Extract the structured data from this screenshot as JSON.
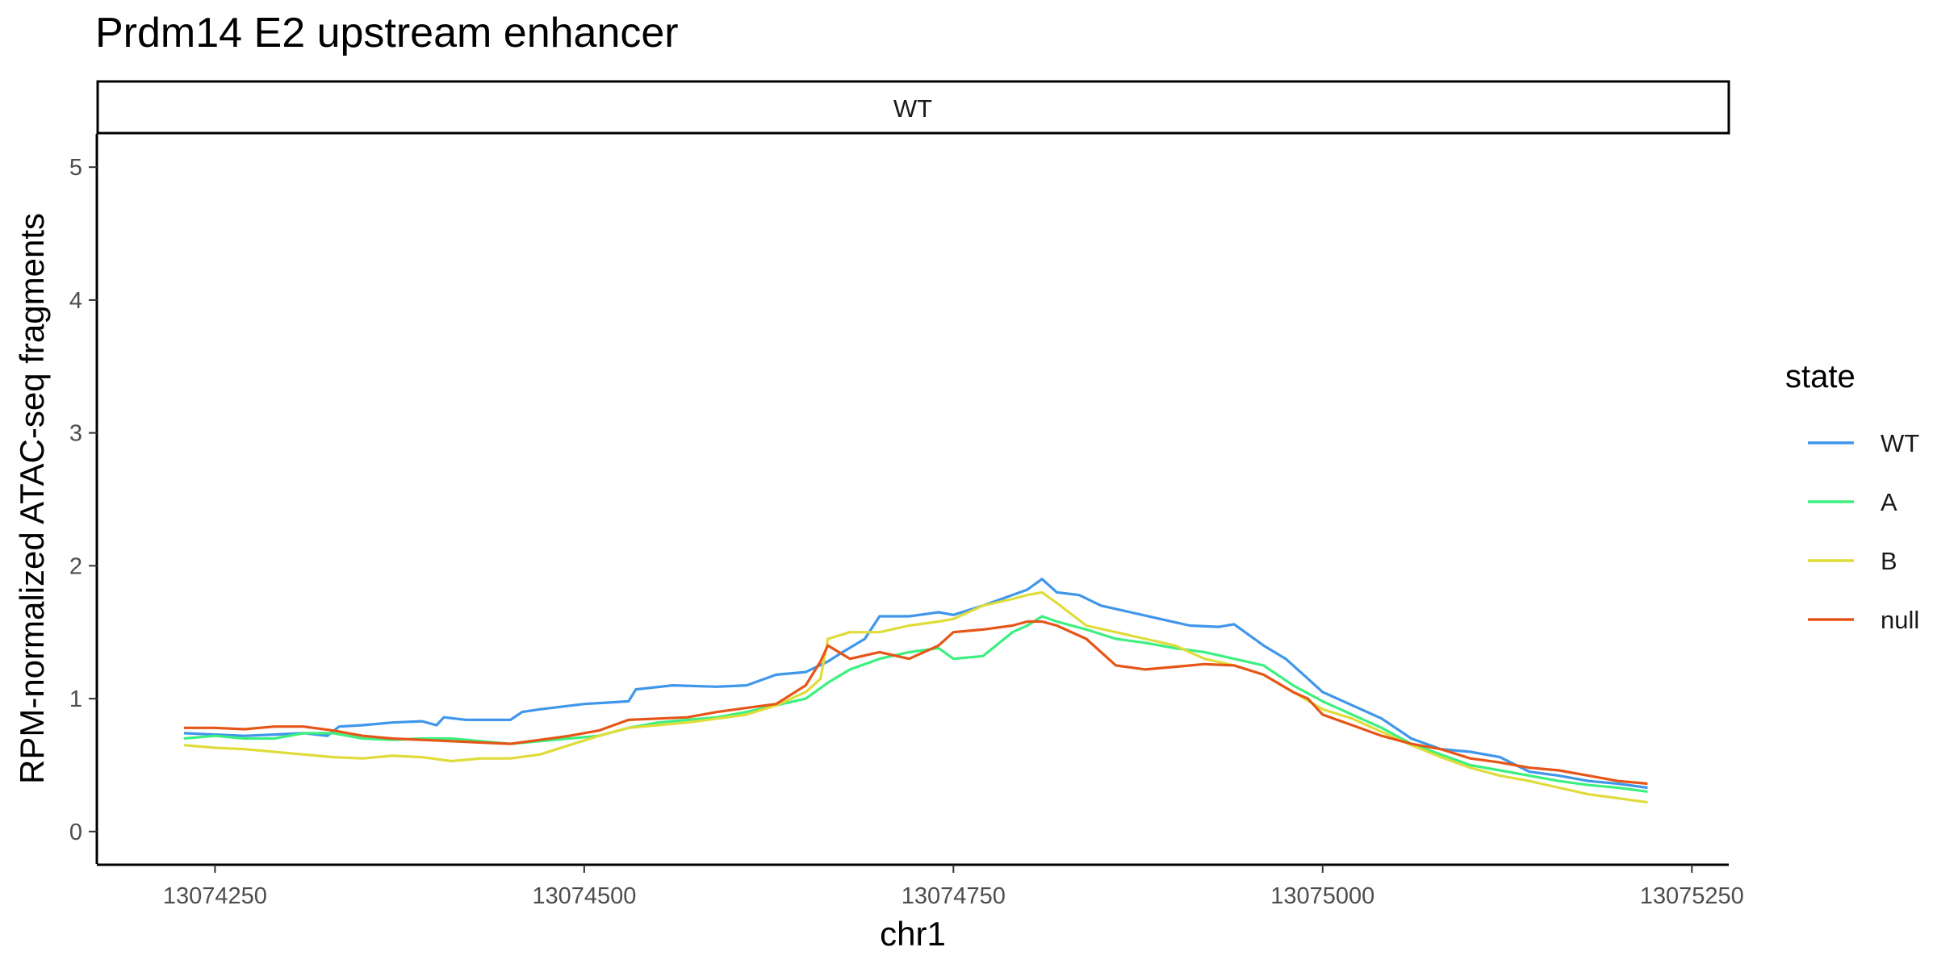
{
  "chart_data": {
    "type": "line",
    "title": "Prdm14 E2 upstream enhancer",
    "facet_label": "WT",
    "xlabel": "chr1",
    "ylabel": "RPM-normalized ATAC-seq fragments",
    "xlim": [
      13074170,
      13075275
    ],
    "ylim": [
      -0.25,
      5.25
    ],
    "x_ticks": [
      13074250,
      13074500,
      13074750,
      13075000,
      13075250
    ],
    "y_ticks": [
      0,
      1,
      2,
      3,
      4,
      5
    ],
    "grid": false,
    "legend": {
      "title": "state",
      "position": "right"
    },
    "series": [
      {
        "name": "WT",
        "color": "#3f96ea",
        "x": [
          13074229,
          13074250,
          13074270,
          13074290,
          13074310,
          13074326,
          13074334,
          13074350,
          13074370,
          13074390,
          13074400,
          13074405,
          13074420,
          13074450,
          13074458,
          13074470,
          13074500,
          13074530,
          13074535,
          13074560,
          13074590,
          13074610,
          13074630,
          13074650,
          13074665,
          13074675,
          13074690,
          13074700,
          13074720,
          13074740,
          13074750,
          13074770,
          13074790,
          13074800,
          13074810,
          13074820,
          13074835,
          13074850,
          13074870,
          13074890,
          13074910,
          13074930,
          13074940,
          13074960,
          13074975,
          13074985,
          13075000,
          13075020,
          13075040,
          13075060,
          13075080,
          13075100,
          13075120,
          13075140,
          13075160,
          13075180,
          13075200,
          13075220
        ],
        "y": [
          0.74,
          0.73,
          0.72,
          0.73,
          0.74,
          0.72,
          0.79,
          0.8,
          0.82,
          0.83,
          0.8,
          0.86,
          0.84,
          0.84,
          0.9,
          0.92,
          0.96,
          0.98,
          1.07,
          1.1,
          1.09,
          1.1,
          1.18,
          1.2,
          1.28,
          1.35,
          1.45,
          1.62,
          1.62,
          1.65,
          1.63,
          1.7,
          1.78,
          1.82,
          1.9,
          1.8,
          1.78,
          1.7,
          1.65,
          1.6,
          1.55,
          1.54,
          1.56,
          1.4,
          1.3,
          1.2,
          1.05,
          0.95,
          0.85,
          0.7,
          0.62,
          0.6,
          0.56,
          0.45,
          0.42,
          0.38,
          0.36,
          0.33
        ]
      },
      {
        "name": "A",
        "color": "#3cf07f",
        "x": [
          13074229,
          13074250,
          13074270,
          13074290,
          13074310,
          13074330,
          13074350,
          13074370,
          13074390,
          13074410,
          13074430,
          13074450,
          13074470,
          13074490,
          13074510,
          13074530,
          13074550,
          13074570,
          13074590,
          13074610,
          13074630,
          13074650,
          13074665,
          13074680,
          13074700,
          13074720,
          13074740,
          13074750,
          13074770,
          13074790,
          13074800,
          13074810,
          13074820,
          13074840,
          13074860,
          13074880,
          13074900,
          13074920,
          13074940,
          13074960,
          13074980,
          13075000,
          13075020,
          13075040,
          13075060,
          13075080,
          13075100,
          13075120,
          13075140,
          13075160,
          13075180,
          13075200,
          13075220
        ],
        "y": [
          0.7,
          0.72,
          0.7,
          0.7,
          0.74,
          0.74,
          0.7,
          0.69,
          0.7,
          0.7,
          0.68,
          0.66,
          0.68,
          0.7,
          0.72,
          0.78,
          0.82,
          0.84,
          0.86,
          0.9,
          0.95,
          1.0,
          1.12,
          1.22,
          1.3,
          1.35,
          1.38,
          1.3,
          1.32,
          1.5,
          1.55,
          1.62,
          1.58,
          1.52,
          1.45,
          1.42,
          1.38,
          1.35,
          1.3,
          1.25,
          1.1,
          0.98,
          0.88,
          0.78,
          0.66,
          0.58,
          0.5,
          0.46,
          0.42,
          0.38,
          0.35,
          0.33,
          0.3
        ]
      },
      {
        "name": "B",
        "color": "#dfdc3a",
        "x": [
          13074229,
          13074250,
          13074270,
          13074290,
          13074310,
          13074330,
          13074350,
          13074370,
          13074390,
          13074410,
          13074430,
          13074450,
          13074470,
          13074490,
          13074510,
          13074530,
          13074550,
          13074570,
          13074590,
          13074610,
          13074630,
          13074650,
          13074660,
          13074665,
          13074680,
          13074700,
          13074720,
          13074740,
          13074750,
          13074770,
          13074790,
          13074800,
          13074810,
          13074820,
          13074840,
          13074860,
          13074880,
          13074900,
          13074920,
          13074940,
          13074960,
          13074980,
          13075000,
          13075020,
          13075040,
          13075060,
          13075080,
          13075100,
          13075120,
          13075140,
          13075160,
          13075180,
          13075200,
          13075220
        ],
        "y": [
          0.65,
          0.63,
          0.62,
          0.6,
          0.58,
          0.56,
          0.55,
          0.57,
          0.56,
          0.53,
          0.55,
          0.55,
          0.58,
          0.65,
          0.72,
          0.78,
          0.8,
          0.82,
          0.85,
          0.88,
          0.95,
          1.05,
          1.15,
          1.45,
          1.5,
          1.5,
          1.55,
          1.58,
          1.6,
          1.7,
          1.75,
          1.78,
          1.8,
          1.72,
          1.55,
          1.5,
          1.45,
          1.4,
          1.3,
          1.25,
          1.18,
          1.05,
          0.92,
          0.85,
          0.75,
          0.65,
          0.56,
          0.48,
          0.42,
          0.38,
          0.33,
          0.28,
          0.25,
          0.22
        ]
      },
      {
        "name": "null",
        "color": "#e65518",
        "x": [
          13074229,
          13074250,
          13074270,
          13074290,
          13074310,
          13074330,
          13074350,
          13074370,
          13074390,
          13074410,
          13074430,
          13074450,
          13074470,
          13074490,
          13074510,
          13074530,
          13074550,
          13074570,
          13074590,
          13074610,
          13074630,
          13074650,
          13074660,
          13074665,
          13074680,
          13074700,
          13074720,
          13074740,
          13074750,
          13074770,
          13074790,
          13074800,
          13074810,
          13074820,
          13074840,
          13074860,
          13074880,
          13074900,
          13074920,
          13074940,
          13074960,
          13074980,
          13074990,
          13075000,
          13075020,
          13075040,
          13075060,
          13075080,
          13075100,
          13075120,
          13075140,
          13075160,
          13075180,
          13075200,
          13075220
        ],
        "y": [
          0.78,
          0.78,
          0.77,
          0.79,
          0.79,
          0.76,
          0.72,
          0.7,
          0.69,
          0.68,
          0.67,
          0.66,
          0.69,
          0.72,
          0.76,
          0.84,
          0.85,
          0.86,
          0.9,
          0.93,
          0.96,
          1.1,
          1.28,
          1.4,
          1.3,
          1.35,
          1.3,
          1.4,
          1.5,
          1.52,
          1.55,
          1.58,
          1.58,
          1.55,
          1.45,
          1.25,
          1.22,
          1.24,
          1.26,
          1.25,
          1.18,
          1.05,
          1.0,
          0.88,
          0.8,
          0.72,
          0.66,
          0.62,
          0.55,
          0.52,
          0.48,
          0.46,
          0.42,
          0.38,
          0.36
        ]
      }
    ]
  }
}
